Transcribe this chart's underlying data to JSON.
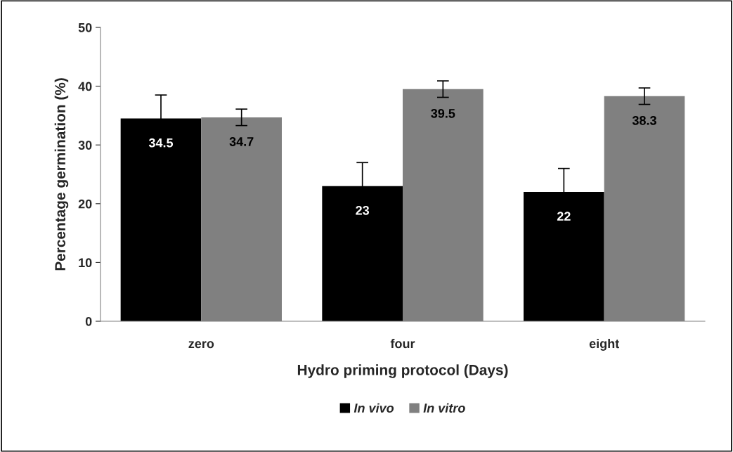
{
  "chart_data": {
    "type": "bar",
    "xlabel": "Hydro priming protocol (Days)",
    "ylabel": "Percentage germination (%)",
    "categories": [
      "zero",
      "four",
      "eight"
    ],
    "series": [
      {
        "name": "In vivo",
        "color": "#000000",
        "values": [
          34.5,
          23,
          22
        ],
        "errors": [
          4,
          4,
          4
        ]
      },
      {
        "name": "In vitro",
        "color": "#808080",
        "values": [
          34.7,
          39.5,
          38.3
        ],
        "errors": [
          1.4,
          1.4,
          1.4
        ]
      }
    ],
    "ylim": [
      0,
      50
    ],
    "yticks": [
      0,
      10,
      20,
      30,
      40,
      50
    ],
    "grid": false,
    "legend": "bottom",
    "data_labels": true
  }
}
